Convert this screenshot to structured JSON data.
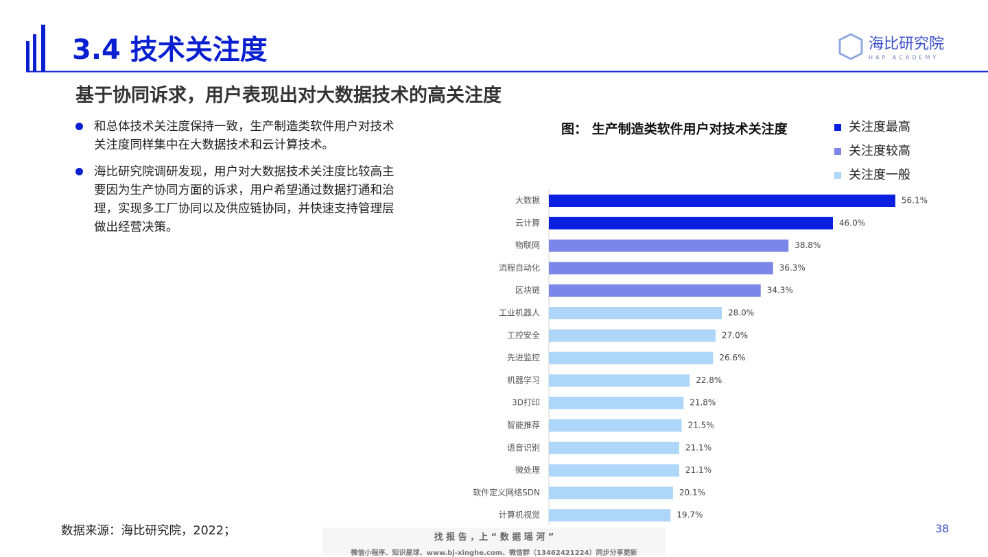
{
  "header": {
    "title": "3.4 技术关注度",
    "logo_name": "海比研究院",
    "logo_sub": "HAP ACADEMY"
  },
  "heading": "基于协同诉求，用户表现出对大数据技术的高关注度",
  "bullets": [
    "和总体技术关注度保持一致，生产制造类软件用户对技术关注度同样集中在大数据技术和云计算技术。",
    "海比研究院调研发现，用户对大数据技术关注度比较高主要因为生产协同方面的诉求，用户希望通过数据打通和治理，实现多工厂协同以及供应链协同，并快速支持管理层做出经营决策。"
  ],
  "source": "数据来源：海比研究院，2022；",
  "page_number": "38",
  "watermark": [
    "找 报 告 ，上 “ 数 据 瑶 河 ”",
    "微信小程序、知识星球、www.bj-xinghe.com、微信群（13462421224）同步分享更新"
  ],
  "chart_data": {
    "type": "bar",
    "orientation": "horizontal",
    "title": "图： 生产制造类软件用户对技术关注度",
    "categories": [
      "大数据",
      "云计算",
      "物联网",
      "流程自动化",
      "区块链",
      "工业机器人",
      "工控安全",
      "先进监控",
      "机器学习",
      "3D打印",
      "智能推荐",
      "语音识别",
      "微处理",
      "软件定义网络SDN",
      "计算机视觉"
    ],
    "series": [
      {
        "name": "关注度最高",
        "color": "#0a1fe0",
        "values": [
          56.1,
          46.0,
          null,
          null,
          null,
          null,
          null,
          null,
          null,
          null,
          null,
          null,
          null,
          null,
          null
        ],
        "value_labels": [
          "56.1%",
          "46.0%",
          null,
          null,
          null,
          null,
          null,
          null,
          null,
          null,
          null,
          null,
          null,
          null,
          null
        ]
      },
      {
        "name": "关注度较高",
        "color": "#7b86e8",
        "values": [
          null,
          null,
          38.8,
          36.3,
          34.3,
          null,
          null,
          null,
          null,
          null,
          null,
          null,
          null,
          null,
          null
        ],
        "value_labels": [
          null,
          null,
          "38.8%",
          "36.3%",
          "34.3%",
          null,
          null,
          null,
          null,
          null,
          null,
          null,
          null,
          null,
          null
        ]
      },
      {
        "name": "关注度一般",
        "color": "#aed6f8",
        "values": [
          null,
          null,
          null,
          null,
          null,
          28.0,
          27.0,
          26.6,
          22.8,
          21.8,
          21.5,
          21.1,
          21.1,
          20.1,
          19.7
        ],
        "value_labels": [
          null,
          null,
          null,
          null,
          null,
          "28.0%",
          "27.0%",
          "26.6%",
          "22.8%",
          "21.8%",
          "21.5%",
          "21.1%",
          "21.1%",
          "20.1%",
          "19.7%"
        ]
      }
    ],
    "legend": "top-right"
  }
}
